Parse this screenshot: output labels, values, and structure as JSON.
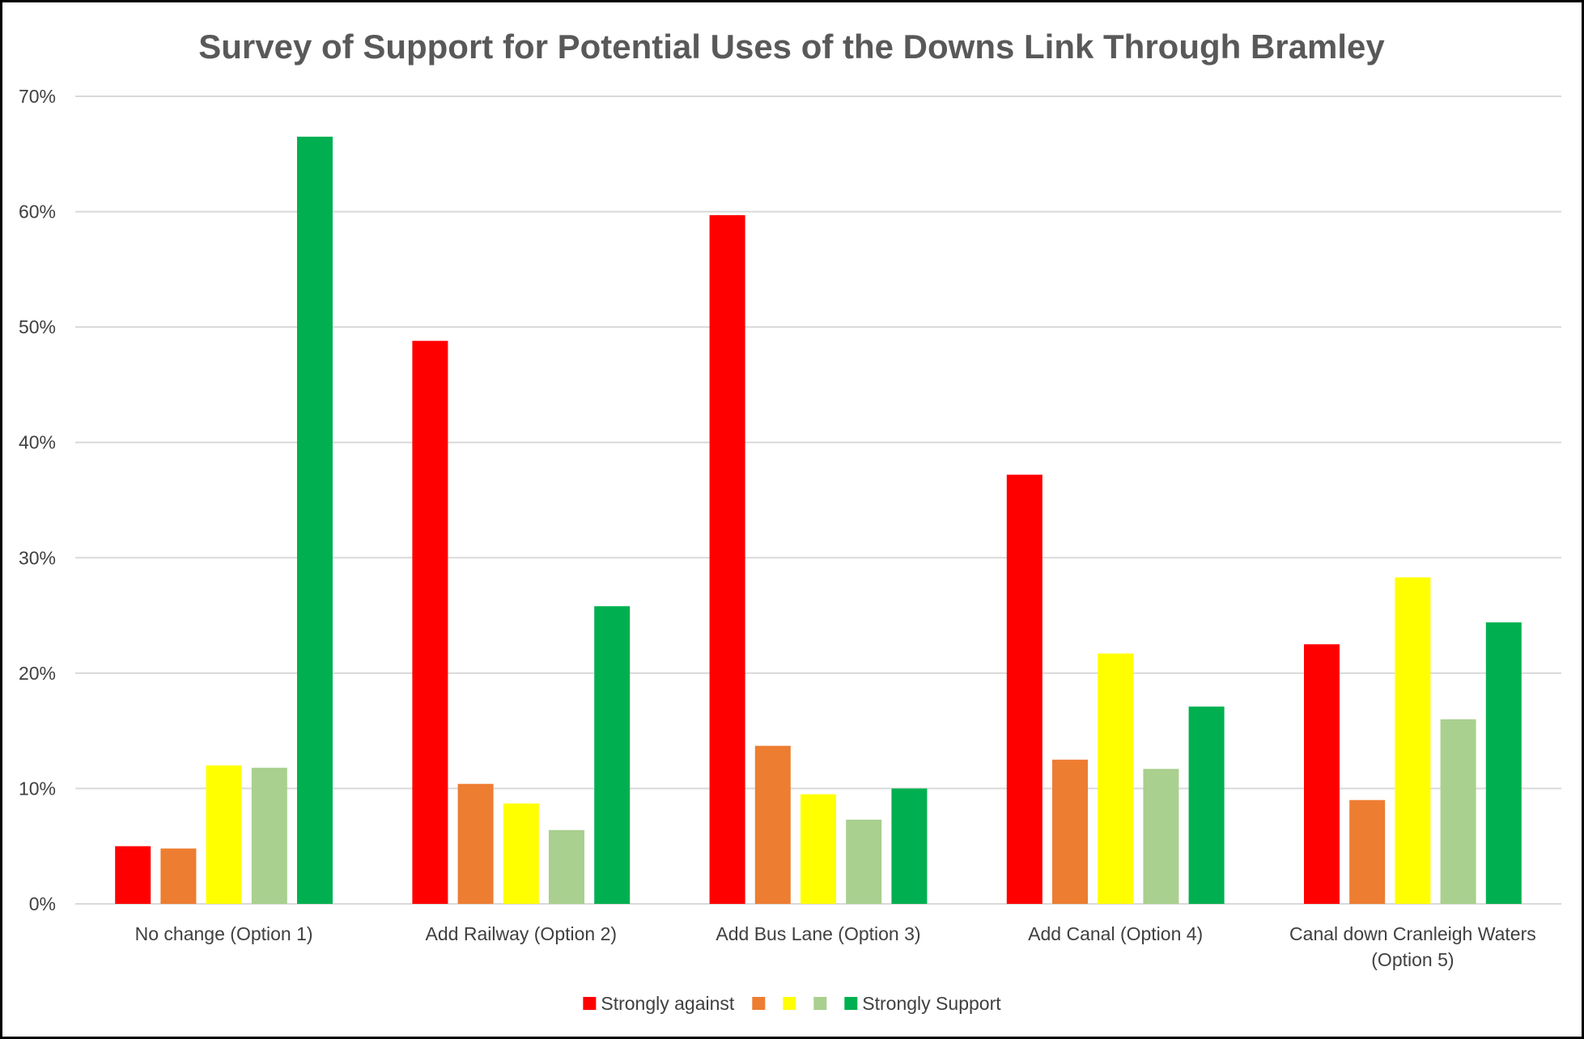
{
  "chart_data": {
    "type": "bar",
    "title": "Survey of Support for Potential Uses of the Downs Link Through Bramley",
    "categories": [
      "No change (Option 1)",
      "Add Railway (Option 2)",
      "Add Bus Lane (Option 3)",
      "Add Canal (Option 4)",
      "Canal down Cranleigh Waters (Option 5)"
    ],
    "category_lines": [
      [
        "No change (Option 1)"
      ],
      [
        "Add Railway (Option 2)"
      ],
      [
        "Add Bus Lane (Option 3)"
      ],
      [
        "Add Canal (Option 4)"
      ],
      [
        "Canal down Cranleigh Waters",
        "(Option 5)"
      ]
    ],
    "series": [
      {
        "name": "Strongly against",
        "color": "#ff0000",
        "values": [
          5.0,
          48.8,
          59.7,
          37.2,
          22.5
        ]
      },
      {
        "name": "",
        "color": "#ed7d31",
        "values": [
          4.8,
          10.4,
          13.7,
          12.5,
          9.0
        ]
      },
      {
        "name": "",
        "color": "#ffff00",
        "values": [
          12.0,
          8.7,
          9.5,
          21.7,
          28.3
        ]
      },
      {
        "name": "",
        "color": "#a9d08e",
        "values": [
          11.8,
          6.4,
          7.3,
          11.7,
          16.0
        ]
      },
      {
        "name": "Strongly Support",
        "color": "#00b050",
        "values": [
          66.5,
          25.8,
          10.0,
          17.1,
          24.4
        ]
      }
    ],
    "y_ticks": [
      "0%",
      "10%",
      "20%",
      "30%",
      "40%",
      "50%",
      "60%",
      "70%"
    ],
    "ylim": [
      0,
      70
    ],
    "xlabel": "",
    "ylabel": "",
    "grid": true,
    "legend_position": "bottom"
  }
}
